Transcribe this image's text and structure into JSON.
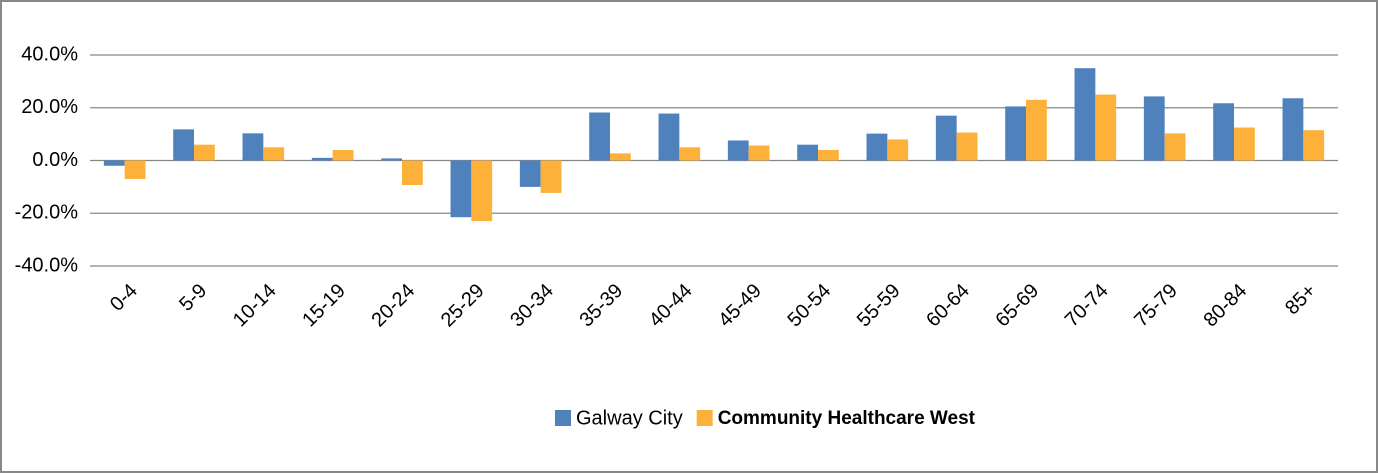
{
  "chart_data": {
    "type": "bar",
    "categories": [
      "0-4",
      "5-9",
      "10-14",
      "15-19",
      "20-24",
      "25-29",
      "30-34",
      "35-39",
      "40-44",
      "45-49",
      "50-54",
      "55-59",
      "60-64",
      "65-69",
      "70-74",
      "75-79",
      "80-84",
      "85+"
    ],
    "series": [
      {
        "name": "Galway City",
        "color": "#4f81bd",
        "values": [
          -2,
          11.8,
          10.3,
          1,
          0.8,
          -21.5,
          -10,
          18.2,
          17.8,
          7.6,
          6,
          10.2,
          17,
          20.5,
          35,
          24.3,
          21.7,
          23.6
        ]
      },
      {
        "name": "Community Healthcare West",
        "color": "#fdb13b",
        "values": [
          -7,
          6,
          5,
          4,
          -9.3,
          -23,
          -12.3,
          2.7,
          5,
          5.7,
          4,
          8,
          10.6,
          23,
          25,
          10.3,
          12.5,
          11.5
        ]
      }
    ],
    "ylim": [
      -40,
      40
    ],
    "yticks": [
      {
        "value": -40,
        "label": "-40.0%"
      },
      {
        "value": -20,
        "label": "-20.0%"
      },
      {
        "value": 0,
        "label": "0.0%"
      },
      {
        "value": 20,
        "label": "20.0%"
      },
      {
        "value": 40,
        "label": "40.0%"
      }
    ],
    "grid": true,
    "legend": "bottom"
  }
}
